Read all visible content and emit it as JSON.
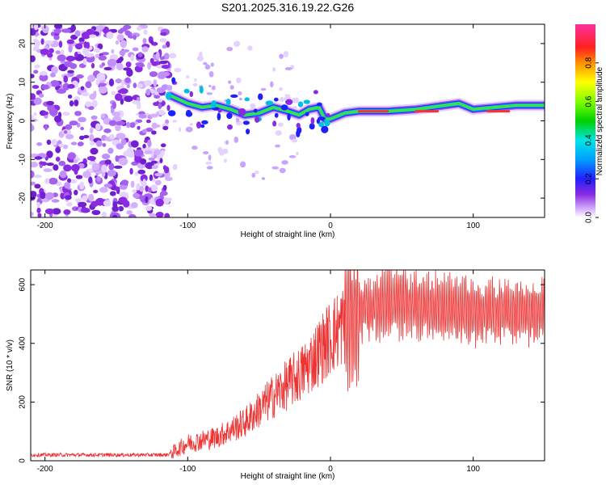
{
  "title": "S201.2025.316.19.22.G26",
  "chart_data": [
    {
      "type": "heatmap",
      "name": "spectrogram",
      "xlabel": "Height of straight line (km)",
      "ylabel": "Frequency (Hz)",
      "xlim": [
        -210,
        150
      ],
      "ylim": [
        -25,
        25
      ],
      "xticks": [
        -200,
        -100,
        0,
        100
      ],
      "yticks": [
        -20,
        -10,
        0,
        10,
        20
      ],
      "colorbar": {
        "label": "Normalized spectral amplitude",
        "range": [
          0,
          1
        ],
        "ticks": [
          0.0,
          0.2,
          0.4,
          0.6,
          0.8
        ]
      },
      "ridge": [
        {
          "x": -112,
          "f": 6.5
        },
        {
          "x": -100,
          "f": 4.5
        },
        {
          "x": -90,
          "f": 3.5
        },
        {
          "x": -80,
          "f": 4.0
        },
        {
          "x": -70,
          "f": 3.0
        },
        {
          "x": -60,
          "f": 1.5
        },
        {
          "x": -50,
          "f": 2.0
        },
        {
          "x": -40,
          "f": 3.5
        },
        {
          "x": -30,
          "f": 2.5
        },
        {
          "x": -22,
          "f": 1.5
        },
        {
          "x": -15,
          "f": 3.0
        },
        {
          "x": -8,
          "f": 3.5
        },
        {
          "x": -4,
          "f": 0.5
        },
        {
          "x": 0,
          "f": 0.5
        },
        {
          "x": 10,
          "f": 2.0
        },
        {
          "x": 20,
          "f": 2.5
        },
        {
          "x": 40,
          "f": 2.5
        },
        {
          "x": 60,
          "f": 3.0
        },
        {
          "x": 80,
          "f": 4.0
        },
        {
          "x": 90,
          "f": 4.5
        },
        {
          "x": 100,
          "f": 3.0
        },
        {
          "x": 115,
          "f": 3.5
        },
        {
          "x": 130,
          "f": 4.0
        },
        {
          "x": 150,
          "f": 4.0
        }
      ]
    },
    {
      "type": "line",
      "name": "snr",
      "xlabel": "Height of straight line (km)",
      "ylabel": "SNR (10 * v/v)",
      "xlim": [
        -210,
        150
      ],
      "ylim": [
        0,
        650
      ],
      "xticks": [
        -200,
        -100,
        0,
        100
      ],
      "yticks": [
        0,
        200,
        400,
        600
      ],
      "color": "#ee3333",
      "series": [
        {
          "name": "SNR",
          "x": [
            -210,
            -115,
            -110,
            -100,
            -80,
            -60,
            -40,
            -20,
            -10,
            0,
            10,
            20,
            40,
            60,
            80,
            100,
            120,
            150
          ],
          "y": [
            20,
            20,
            30,
            60,
            80,
            130,
            220,
            300,
            360,
            420,
            470,
            510,
            540,
            530,
            520,
            510,
            510,
            505
          ]
        }
      ]
    }
  ],
  "colors": {
    "noise": "#8a2be2",
    "line": "#ee3333",
    "frame": "#000000"
  }
}
